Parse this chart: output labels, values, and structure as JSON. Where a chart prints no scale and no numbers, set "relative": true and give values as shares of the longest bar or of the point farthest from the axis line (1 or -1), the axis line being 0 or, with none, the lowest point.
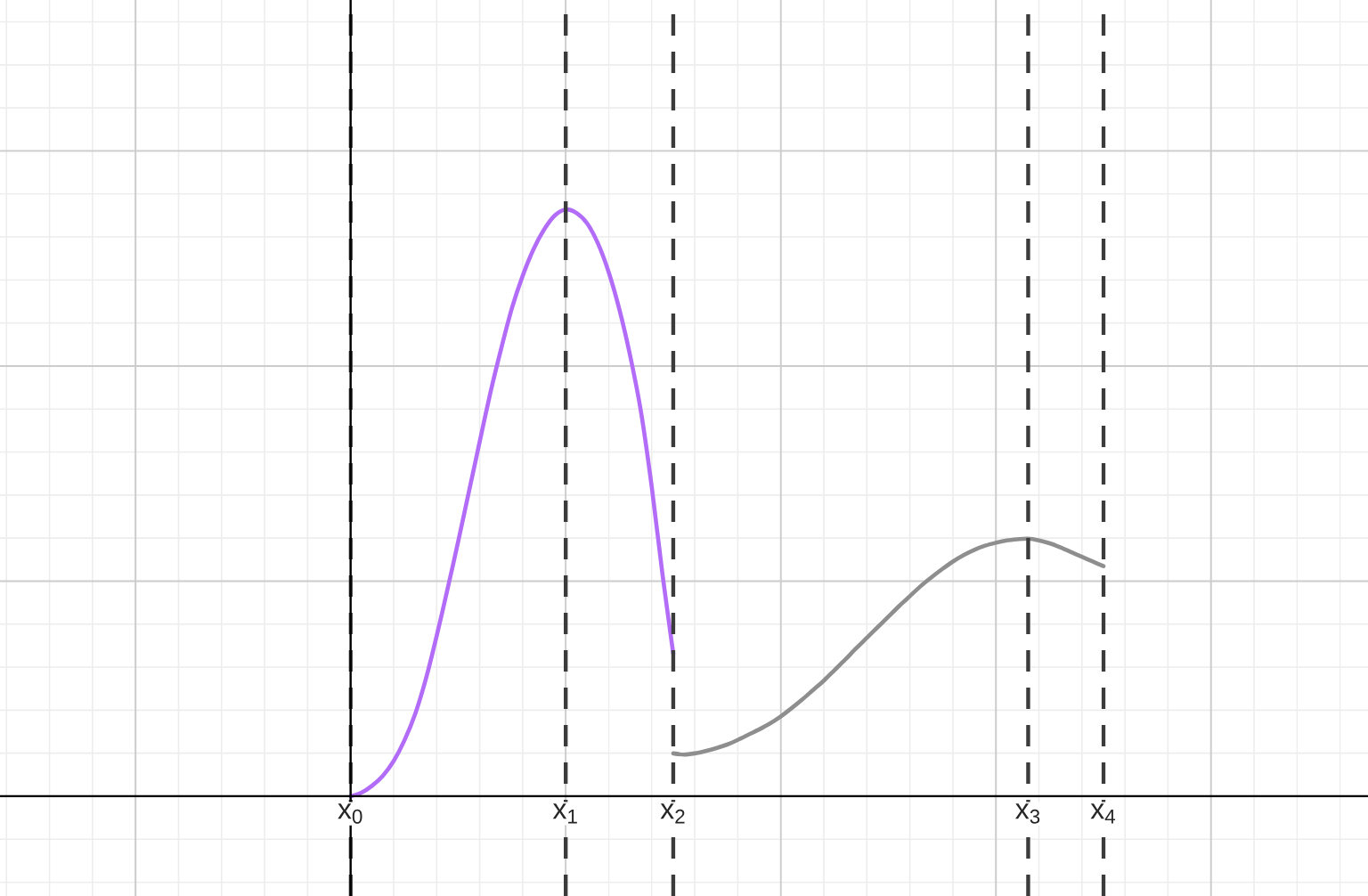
{
  "chart_data": {
    "type": "line",
    "relative": true,
    "grid": true,
    "categories": [
      "x$_{0}$",
      null,
      null,
      null,
      null,
      null,
      null,
      null,
      null,
      null,
      null,
      null,
      null,
      null,
      null,
      null,
      null,
      null,
      null,
      null,
      "x$_{1}$",
      null,
      null,
      null,
      null,
      null,
      null,
      null,
      null,
      null,
      "x$_{2}$",
      null,
      null,
      null,
      null,
      null,
      null,
      null,
      null,
      null,
      null,
      null,
      null,
      null,
      null,
      null,
      null,
      null,
      null,
      null,
      null,
      null,
      null,
      null,
      null,
      null,
      null,
      null,
      null,
      null,
      null,
      null,
      null,
      "x$_{3}$",
      null,
      null,
      null,
      null,
      null,
      null,
      "x$_{4}$"
    ],
    "series": [
      {
        "color": "#b26cf7",
        "values": [
          0,
          0.006,
          0.018,
          0.035,
          0.06,
          0.095,
          0.14,
          0.2,
          0.273,
          0.352,
          0.434,
          0.519,
          0.604,
          0.688,
          0.763,
          0.832,
          0.887,
          0.932,
          0.966,
          0.99,
          1,
          0.994,
          0.976,
          0.942,
          0.893,
          0.829,
          0.75,
          0.655,
          0.527,
          0.378,
          0.243,
          null,
          null,
          null,
          null,
          null,
          null,
          null,
          null,
          null,
          null,
          null,
          null,
          null,
          null,
          null,
          null,
          null,
          null,
          null,
          null,
          null,
          null,
          null,
          null,
          null,
          null,
          null,
          null,
          null,
          null,
          null,
          null,
          null,
          null,
          null,
          null,
          null,
          null,
          null,
          null
        ]
      },
      {
        "color": "#8e8e8e",
        "values": [
          null,
          null,
          null,
          null,
          null,
          null,
          null,
          null,
          null,
          null,
          null,
          null,
          null,
          null,
          null,
          null,
          null,
          null,
          null,
          null,
          null,
          null,
          null,
          null,
          null,
          null,
          null,
          null,
          null,
          null,
          0.073,
          0.071,
          0.073,
          0.077,
          0.082,
          0.088,
          0.096,
          0.105,
          0.114,
          0.124,
          0.136,
          0.15,
          0.165,
          0.181,
          0.197,
          0.215,
          0.233,
          0.252,
          0.27,
          0.288,
          0.306,
          0.324,
          0.341,
          0.358,
          0.373,
          0.387,
          0.4,
          0.411,
          0.42,
          0.427,
          0.432,
          0.436,
          0.438,
          0.439,
          0.436,
          0.431,
          0.424,
          0.416,
          0.408,
          0.4,
          0.392
        ]
      }
    ]
  }
}
